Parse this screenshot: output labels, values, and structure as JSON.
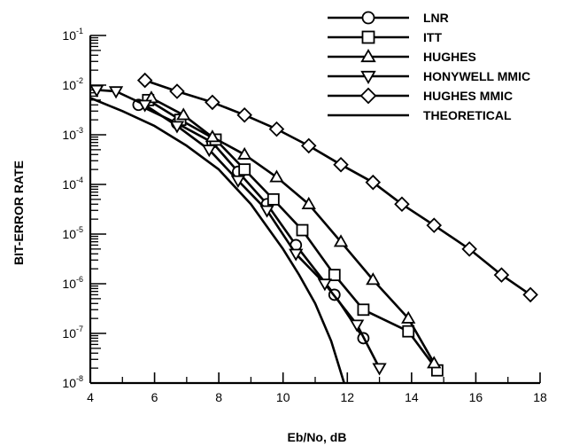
{
  "chart_data": {
    "type": "line",
    "xlabel": "Eb/No, dB",
    "ylabel": "BIT-ERROR RATE",
    "xlim": [
      4,
      18
    ],
    "ylim": [
      1e-08,
      0.1
    ],
    "yscale": "log",
    "x_ticks": [
      4,
      6,
      8,
      10,
      12,
      14,
      16,
      18
    ],
    "x_tick_labels": [
      "4",
      "6",
      "8",
      "10",
      "12",
      "14",
      "16",
      "18"
    ],
    "y_ticks": [
      0.1,
      0.01,
      0.001,
      0.0001,
      1e-05,
      1e-06,
      1e-07,
      1e-08
    ],
    "y_tick_labels": [
      {
        "base": "10",
        "exp": "-1"
      },
      {
        "base": "10",
        "exp": "-2"
      },
      {
        "base": "10",
        "exp": "-3"
      },
      {
        "base": "10",
        "exp": "-4"
      },
      {
        "base": "10",
        "exp": "-5"
      },
      {
        "base": "10",
        "exp": "-6"
      },
      {
        "base": "10",
        "exp": "-7"
      },
      {
        "base": "10",
        "exp": "-8"
      }
    ],
    "grid": false,
    "legend_position": "top-right",
    "series": [
      {
        "name": "LNR",
        "marker": "circle",
        "x": [
          5.5,
          6.7,
          7.8,
          8.6,
          9.5,
          10.4,
          11.6,
          12.5
        ],
        "y": [
          0.004,
          0.0017,
          0.0007,
          0.00018,
          4e-05,
          6e-06,
          6e-07,
          8e-08
        ]
      },
      {
        "name": "ITT",
        "marker": "square",
        "x": [
          5.8,
          6.8,
          7.9,
          8.8,
          9.7,
          10.6,
          11.6,
          12.5,
          13.9,
          14.8
        ],
        "y": [
          0.005,
          0.002,
          0.0008,
          0.0002,
          5e-05,
          1.2e-05,
          1.5e-06,
          3e-07,
          1.1e-07,
          1.8e-08
        ]
      },
      {
        "name": "HUGHES",
        "marker": "triangle-up",
        "x": [
          5.9,
          6.9,
          7.8,
          8.8,
          9.8,
          10.8,
          11.8,
          12.8,
          13.9,
          14.7
        ],
        "y": [
          0.0055,
          0.0025,
          0.0009,
          0.0004,
          0.00014,
          4e-05,
          7e-06,
          1.2e-06,
          2e-07,
          2.5e-08
        ]
      },
      {
        "name": "HONYWELL MMIC",
        "marker": "triangle-down",
        "x": [
          4.2,
          4.8,
          5.7,
          6.7,
          7.7,
          8.6,
          9.5,
          10.4,
          11.3,
          12.3,
          13.0
        ],
        "y": [
          0.008,
          0.0075,
          0.004,
          0.0015,
          0.0005,
          0.00012,
          3e-05,
          4e-06,
          1e-06,
          1.5e-07,
          2e-08
        ]
      },
      {
        "name": "HUGHES MMIC",
        "marker": "diamond",
        "x": [
          5.7,
          6.7,
          7.8,
          8.8,
          9.8,
          10.8,
          11.8,
          12.8,
          13.7,
          14.7,
          15.8,
          16.8,
          17.7
        ],
        "y": [
          0.0125,
          0.0075,
          0.0045,
          0.0025,
          0.0013,
          0.0006,
          0.00025,
          0.00011,
          4e-05,
          1.5e-05,
          5e-06,
          1.5e-06,
          6e-07
        ]
      },
      {
        "name": "THEORETICAL",
        "marker": "none",
        "x": [
          4.0,
          5.0,
          6.0,
          7.0,
          8.0,
          9.0,
          10.0,
          10.5,
          11.0,
          11.5,
          11.9
        ],
        "y": [
          0.0055,
          0.003,
          0.0015,
          0.0006,
          0.0002,
          4e-05,
          5e-06,
          1.5e-06,
          4e-07,
          7e-08,
          1e-08
        ]
      }
    ]
  }
}
